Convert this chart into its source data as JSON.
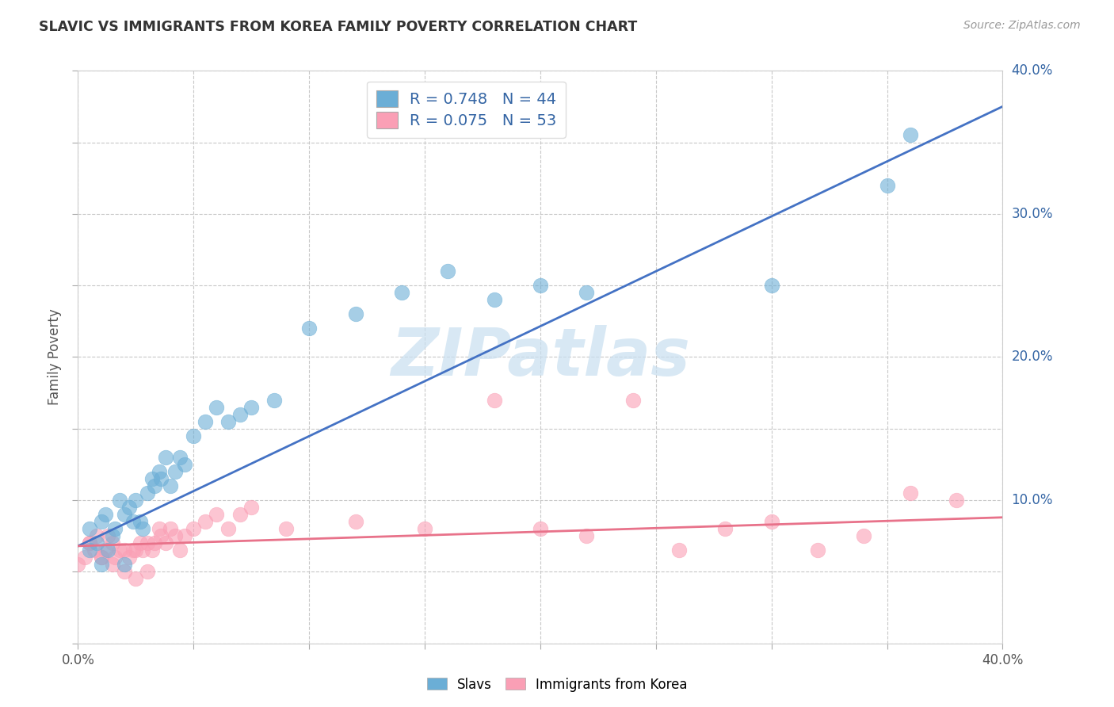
{
  "title": "SLAVIC VS IMMIGRANTS FROM KOREA FAMILY POVERTY CORRELATION CHART",
  "source": "Source: ZipAtlas.com",
  "ylabel": "Family Poverty",
  "xlim": [
    0.0,
    0.4
  ],
  "ylim": [
    0.0,
    0.4
  ],
  "slavs_color": "#6baed6",
  "korea_color": "#fa9fb5",
  "slavs_R": 0.748,
  "slavs_N": 44,
  "korea_R": 0.075,
  "korea_N": 53,
  "legend_text_color": "#3465a4",
  "watermark_color": "#c8dff0",
  "background_color": "#ffffff",
  "grid_color": "#c8c8c8",
  "slavs_x": [
    0.005,
    0.008,
    0.01,
    0.012,
    0.013,
    0.015,
    0.016,
    0.018,
    0.02,
    0.022,
    0.024,
    0.025,
    0.027,
    0.028,
    0.03,
    0.032,
    0.033,
    0.035,
    0.036,
    0.038,
    0.04,
    0.042,
    0.044,
    0.046,
    0.05,
    0.055,
    0.06,
    0.065,
    0.07,
    0.075,
    0.085,
    0.1,
    0.12,
    0.14,
    0.16,
    0.18,
    0.2,
    0.22,
    0.3,
    0.35,
    0.36,
    0.005,
    0.01,
    0.02
  ],
  "slavs_y": [
    0.08,
    0.07,
    0.085,
    0.09,
    0.065,
    0.075,
    0.08,
    0.1,
    0.09,
    0.095,
    0.085,
    0.1,
    0.085,
    0.08,
    0.105,
    0.115,
    0.11,
    0.12,
    0.115,
    0.13,
    0.11,
    0.12,
    0.13,
    0.125,
    0.145,
    0.155,
    0.165,
    0.155,
    0.16,
    0.165,
    0.17,
    0.22,
    0.23,
    0.245,
    0.26,
    0.24,
    0.25,
    0.245,
    0.25,
    0.32,
    0.355,
    0.065,
    0.055,
    0.055
  ],
  "korea_x": [
    0.0,
    0.003,
    0.005,
    0.007,
    0.008,
    0.01,
    0.012,
    0.013,
    0.015,
    0.016,
    0.018,
    0.02,
    0.022,
    0.024,
    0.025,
    0.027,
    0.028,
    0.03,
    0.032,
    0.033,
    0.035,
    0.036,
    0.038,
    0.04,
    0.042,
    0.044,
    0.046,
    0.05,
    0.055,
    0.06,
    0.065,
    0.07,
    0.075,
    0.09,
    0.12,
    0.15,
    0.18,
    0.2,
    0.22,
    0.24,
    0.26,
    0.28,
    0.3,
    0.32,
    0.34,
    0.36,
    0.38,
    0.005,
    0.01,
    0.015,
    0.02,
    0.025,
    0.03
  ],
  "korea_y": [
    0.055,
    0.06,
    0.07,
    0.065,
    0.075,
    0.06,
    0.065,
    0.075,
    0.07,
    0.06,
    0.065,
    0.065,
    0.06,
    0.065,
    0.065,
    0.07,
    0.065,
    0.07,
    0.065,
    0.07,
    0.08,
    0.075,
    0.07,
    0.08,
    0.075,
    0.065,
    0.075,
    0.08,
    0.085,
    0.09,
    0.08,
    0.09,
    0.095,
    0.08,
    0.085,
    0.08,
    0.17,
    0.08,
    0.075,
    0.17,
    0.065,
    0.08,
    0.085,
    0.065,
    0.075,
    0.105,
    0.1,
    0.07,
    0.06,
    0.055,
    0.05,
    0.045,
    0.05
  ],
  "slav_line_x": [
    0.0,
    0.4
  ],
  "slav_line_y": [
    0.068,
    0.375
  ],
  "korea_line_x": [
    0.0,
    0.4
  ],
  "korea_line_y": [
    0.068,
    0.088
  ]
}
